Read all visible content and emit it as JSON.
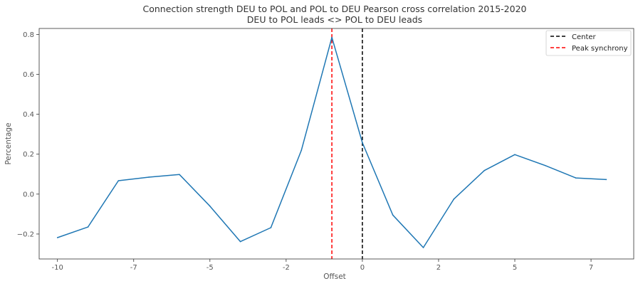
{
  "chart_data": {
    "type": "line",
    "title": "Connection strength DEU to POL and POL to DEU Pearson cross correlation 2015-2020",
    "subtitle": "DEU to POL leads <> POL to DEU leads",
    "xlabel": "Offset",
    "ylabel": "Percentage",
    "xlim": [
      -10.6,
      8.9
    ],
    "ylim": [
      -0.325,
      0.83
    ],
    "xtick_positions": [
      -10,
      -7.5,
      -5,
      -2.5,
      0,
      2.5,
      5,
      7.5
    ],
    "xtick_labels": [
      "-10",
      "-7",
      "-5",
      "-2",
      "0",
      "2",
      "5",
      "7"
    ],
    "yticks": [
      -0.2,
      0.0,
      0.2,
      0.4,
      0.6,
      0.8
    ],
    "ytick_labels": [
      "−0.2",
      "0.0",
      "0.2",
      "0.4",
      "0.6",
      "0.8"
    ],
    "grid": false,
    "legend_position": "top-right",
    "series": [
      {
        "color": "#1f77b4",
        "x": [
          -10,
          -9,
          -8,
          -7,
          -6,
          -5,
          -4,
          -3,
          -2,
          -1,
          0,
          1,
          2,
          3,
          4,
          5,
          6,
          7,
          8
        ],
        "values": [
          -0.218,
          -0.165,
          0.067,
          0.085,
          0.098,
          -0.06,
          -0.238,
          -0.168,
          0.22,
          0.785,
          0.258,
          -0.105,
          -0.268,
          -0.025,
          0.118,
          0.198,
          0.143,
          0.081,
          0.073
        ]
      }
    ],
    "vlines": [
      {
        "name": "Center",
        "x": 0,
        "color": "#000000",
        "style": "dashed"
      },
      {
        "name": "Peak synchrony",
        "x": -1,
        "color": "#ff0000",
        "style": "dashed"
      }
    ],
    "legend": [
      "Center",
      "Peak synchrony"
    ]
  }
}
